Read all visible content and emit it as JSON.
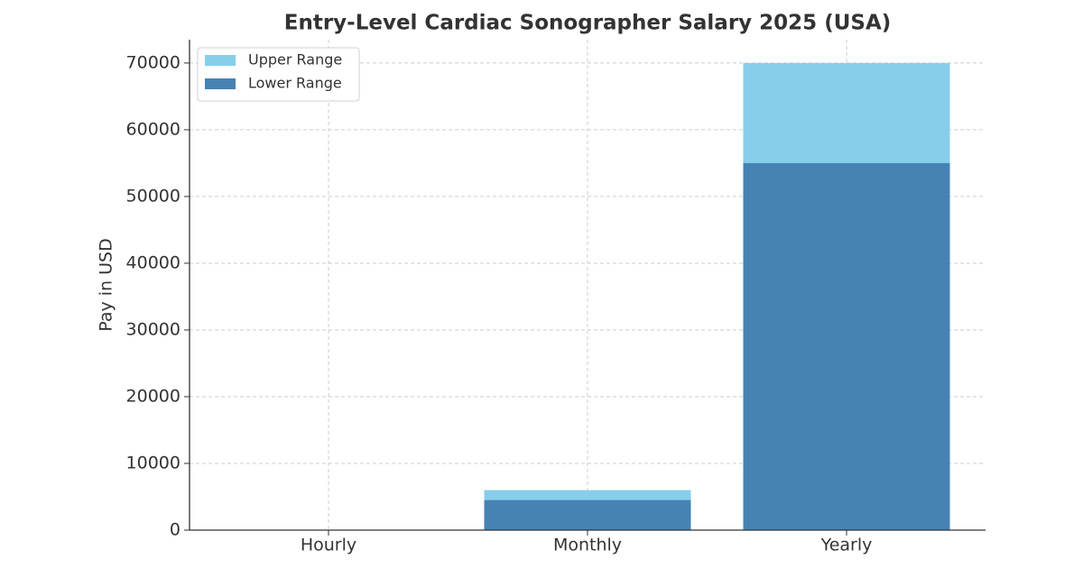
{
  "chart_data": {
    "type": "bar",
    "title": "Entry-Level Cardiac Sonographer Salary 2025 (USA)",
    "y_label": "Pay in USD",
    "categories": [
      "Hourly",
      "Monthly",
      "Yearly"
    ],
    "series": [
      {
        "name": "Upper Range",
        "color": "#87ceeb",
        "values": [
          33,
          6000,
          70000
        ]
      },
      {
        "name": "Lower Range",
        "color": "#4682b4",
        "values": [
          26,
          4500,
          55000
        ]
      }
    ],
    "ylim": [
      0,
      73500
    ],
    "yticks": [
      0,
      10000,
      20000,
      30000,
      40000,
      50000,
      60000,
      70000
    ],
    "grid": true,
    "legend": "upper-left"
  }
}
